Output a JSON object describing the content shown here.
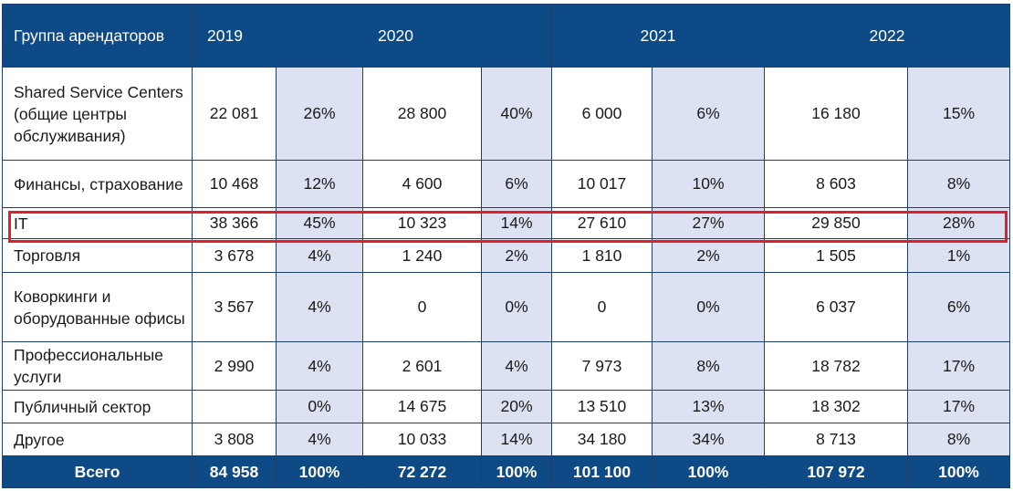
{
  "header": {
    "group_label": "Группа арендаторов",
    "years": [
      "2019",
      "2020",
      "2021",
      "2022"
    ]
  },
  "rows": [
    {
      "label": "Shared Service Centers (общие центры обслуживания)",
      "cells": [
        "22 081",
        "26%",
        "28 800",
        "40%",
        "6 000",
        "6%",
        "16 180",
        "15%"
      ]
    },
    {
      "label": "Финансы, страхование",
      "cells": [
        "10 468",
        "12%",
        "4 600",
        "6%",
        "10 017",
        "10%",
        "8 603",
        "8%"
      ]
    },
    {
      "label": "IT",
      "cells": [
        "38 366",
        "45%",
        "10 323",
        "14%",
        "27 610",
        "27%",
        "29 850",
        "28%"
      ]
    },
    {
      "label": "Торговля",
      "cells": [
        "3 678",
        "4%",
        "1 240",
        "2%",
        "1 810",
        "2%",
        "1 505",
        "1%"
      ]
    },
    {
      "label": "Коворкинги и оборудованные офисы",
      "cells": [
        "3 567",
        "4%",
        "0",
        "0%",
        "0",
        "0%",
        "6 037",
        "6%"
      ]
    },
    {
      "label": "Профессиональные услуги",
      "cells": [
        "2 990",
        "4%",
        "2 601",
        "4%",
        "7 973",
        "8%",
        "18 782",
        "17%"
      ]
    },
    {
      "label": "Публичный сектор",
      "cells": [
        "",
        "0%",
        "14 675",
        "20%",
        "13 510",
        "13%",
        "18 302",
        "17%"
      ]
    },
    {
      "label": "Другое",
      "cells": [
        "3 808",
        "4%",
        "10 033",
        "14%",
        "34 180",
        "34%",
        "8 713",
        "8%"
      ]
    }
  ],
  "total": {
    "label": "Всего",
    "cells": [
      "84 958",
      "100%",
      "72 272",
      "100%",
      "101 100",
      "100%",
      "107 972",
      "100%"
    ]
  },
  "highlight_color": "#e0212b",
  "header_color": "#0e4a86",
  "pct_column_color": "#dde2f2"
}
